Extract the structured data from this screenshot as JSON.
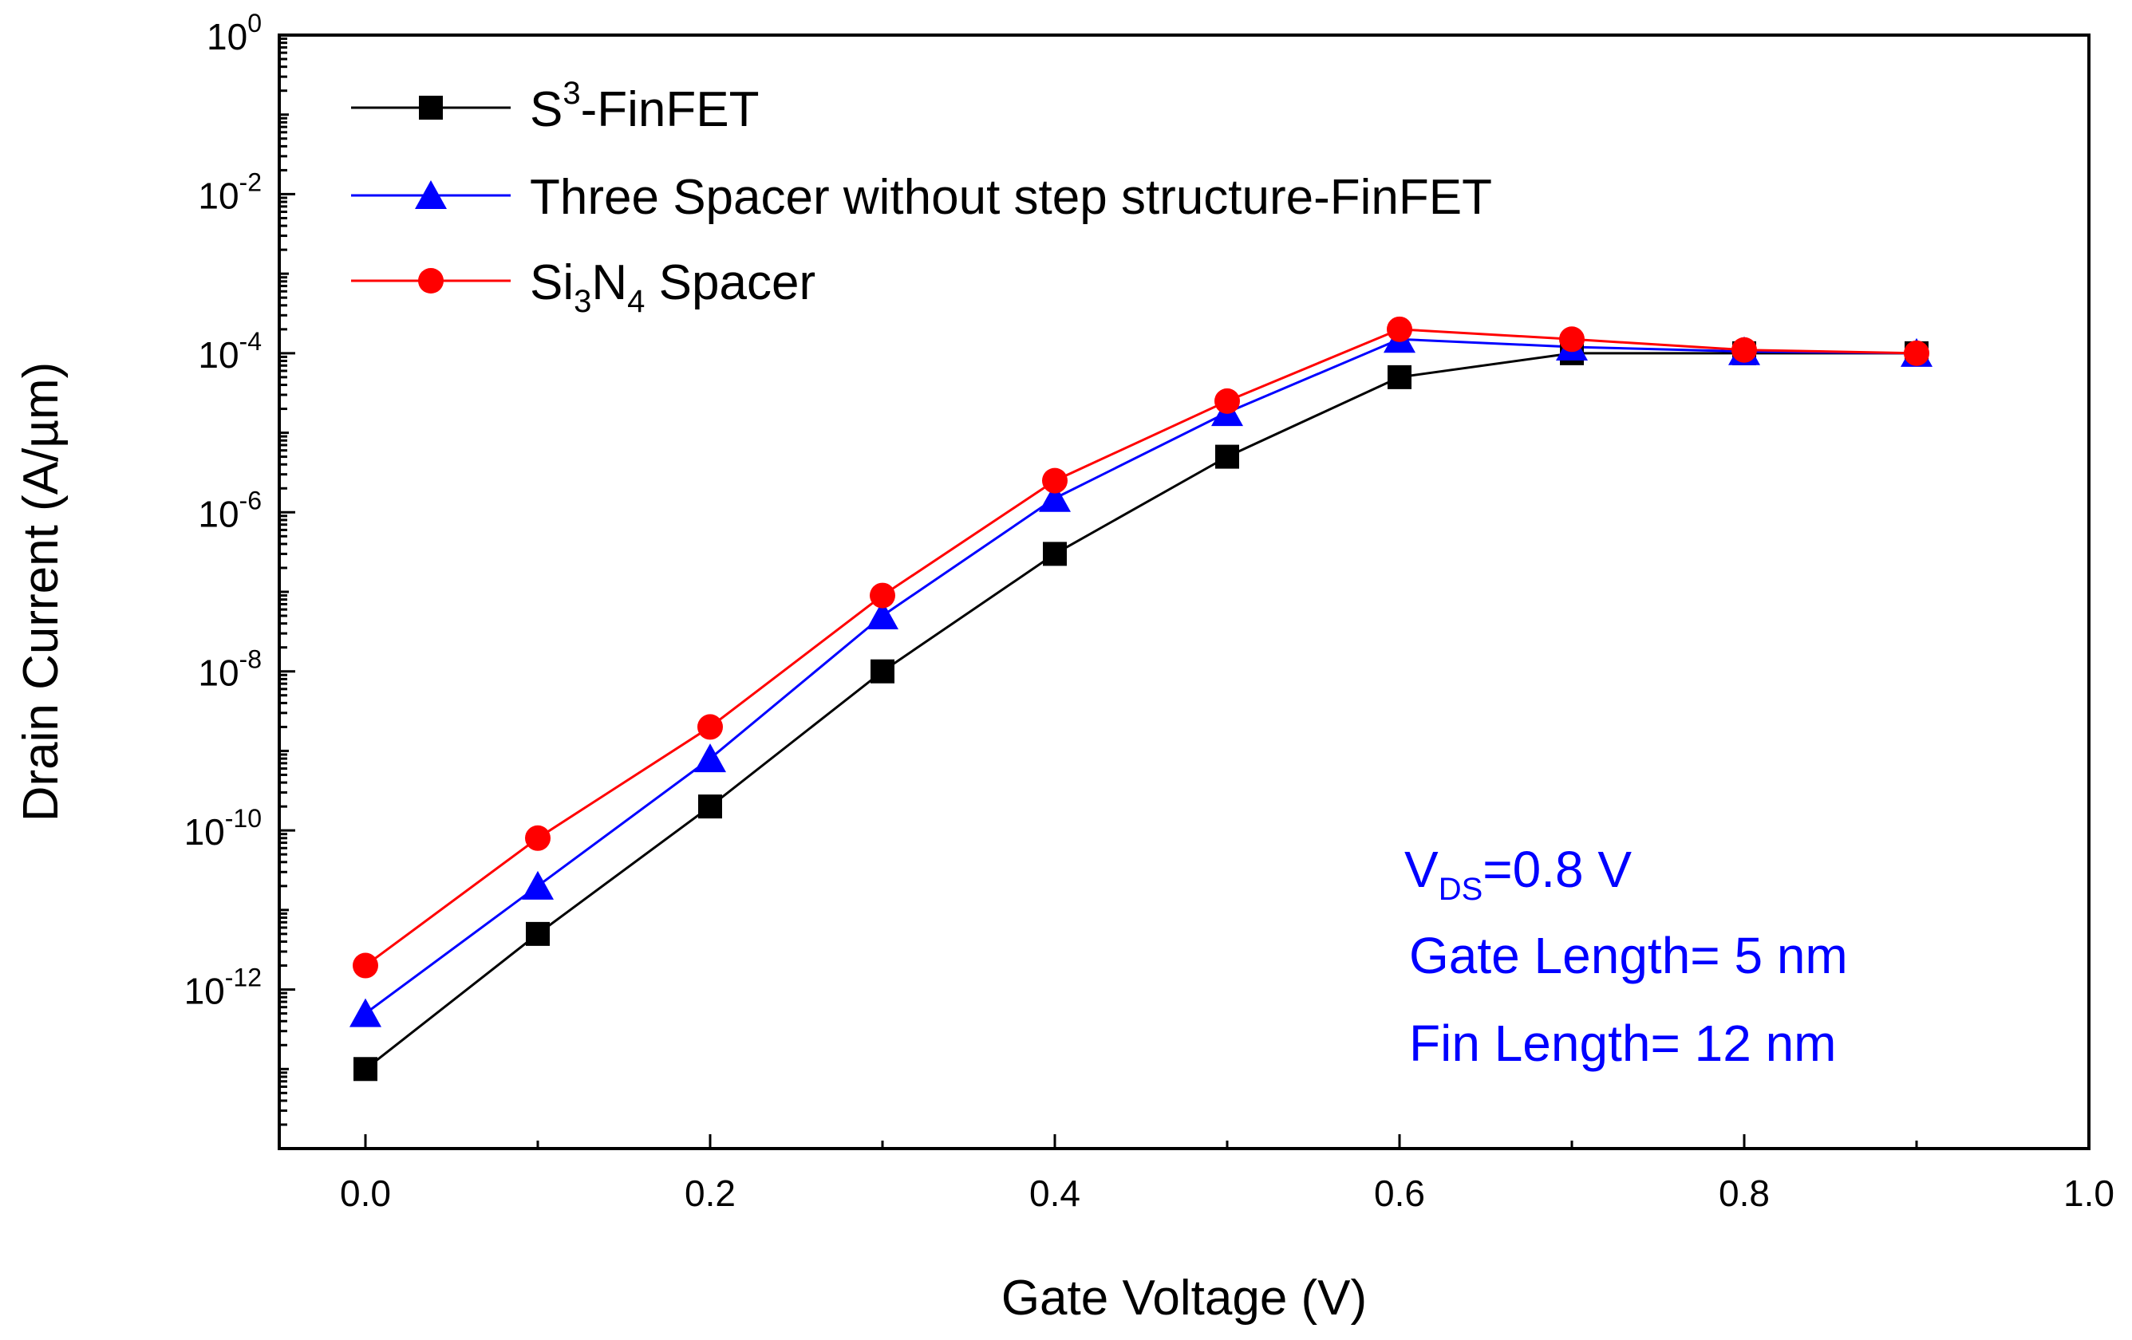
{
  "chart_data": {
    "type": "line",
    "title": "",
    "xlabel": "Gate Voltage (V)",
    "ylabel": "Drain Current (A/µm)",
    "xlim": [
      -0.05,
      1.0
    ],
    "ylim_exp": [
      -14,
      0
    ],
    "yscale": "log",
    "x_ticks": [
      "0.0",
      "0.2",
      "0.4",
      "0.6",
      "0.8",
      "1.0"
    ],
    "x_tick_values": [
      0.0,
      0.2,
      0.4,
      0.6,
      0.8,
      1.0
    ],
    "y_tick_base": "10",
    "y_tick_exponents": [
      "0",
      "-2",
      "-4",
      "-6",
      "-8",
      "-10",
      "-12"
    ],
    "y_tick_values": [
      0,
      -2,
      -4,
      -6,
      -8,
      -10,
      -12
    ],
    "x": [
      0.0,
      0.1,
      0.2,
      0.3,
      0.4,
      0.5,
      0.6,
      0.7,
      0.8,
      0.9
    ],
    "series": [
      {
        "name": "S3-FinFET",
        "legend_parts": [
          "S",
          "3",
          "-FinFET"
        ],
        "color": "#000000",
        "marker": "square",
        "values": [
          1e-13,
          5e-12,
          2e-10,
          1e-08,
          3e-07,
          5e-06,
          5e-05,
          0.0001,
          0.0001,
          0.0001
        ]
      },
      {
        "name": "Three Spacer without step structure-FinFET",
        "legend_parts": [
          "Three Spacer without step structure-FinFET"
        ],
        "color": "#0000ff",
        "marker": "triangle",
        "values": [
          5e-13,
          2e-11,
          8e-10,
          5e-08,
          1.5e-06,
          1.8e-05,
          0.00015,
          0.00012,
          0.000105,
          0.0001
        ]
      },
      {
        "name": "Si3N4 Spacer",
        "legend_parts": [
          "Si",
          "3",
          "N",
          "4",
          " Spacer"
        ],
        "color": "#ff0000",
        "marker": "circle",
        "values": [
          2e-12,
          8e-11,
          2e-09,
          9e-08,
          2.5e-06,
          2.5e-05,
          0.0002,
          0.00015,
          0.00011,
          0.0001
        ]
      }
    ],
    "legend_position": "top-left",
    "annotation": {
      "vds_main": "V",
      "vds_sub": "DS",
      "vds_rest": "=0.8 V",
      "gate_length": "Gate Length= 5 nm",
      "fin_length": "Fin Length= 12 nm",
      "color": "#0000ff"
    }
  }
}
